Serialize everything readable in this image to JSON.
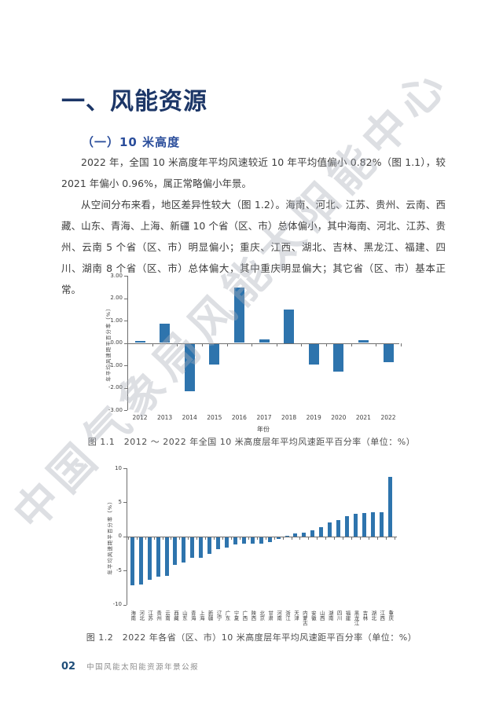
{
  "page": {
    "heading": "一、风能资源",
    "subheading": "（一）10 米高度",
    "paragraphs": [
      "2022 年，全国 10 米高度年平均风速较近 10 年平均值偏小 0.82%（图 1.1），较 2021 年偏小 0.96%，属正常略偏小年景。",
      "从空间分布来看，地区差异性较大（图 1.2）。海南、河北、江苏、贵州、云南、西藏、山东、青海、上海、新疆 10 个省（区、市）总体偏小，其中海南、河北、江苏、贵州、云南 5 个省（区、市）明显偏小；重庆、江西、湖北、吉林、黑龙江、福建、四川、湖南 8 个省（区、市）总体偏大，其中重庆明显偏大；其它省（区、市）基本正常。"
    ],
    "watermark": "中国气象局风能太阳能中心",
    "footer": {
      "page_number": "02",
      "text": "中国风能太阳能资源年景公报"
    }
  },
  "colors": {
    "bar": "#2E74AD",
    "heading": "#1C3667",
    "subheading": "#2A4D9B",
    "axis": "#6E6E6E",
    "tick_text": "#404040",
    "caption_text": "#4D4D4D"
  },
  "chart_data": [
    {
      "type": "bar",
      "title": "图 1.1　2012 ～ 2022 年全国 10 米高度层年平均风速距平百分率（单位：%）",
      "categories": [
        "2012",
        "2013",
        "2014",
        "2015",
        "2016",
        "2017",
        "2018",
        "2019",
        "2020",
        "2021",
        "2022"
      ],
      "values": [
        0.08,
        0.86,
        -2.12,
        -0.92,
        2.47,
        0.17,
        1.5,
        -0.93,
        -1.23,
        0.14,
        -0.82
      ],
      "xlabel": "年份",
      "ylabel": "年平均风速距平百分率（%）",
      "ylim": [
        -3,
        3
      ],
      "ytick_step": 1,
      "ytick_decimals": 2,
      "grid": false,
      "legend": "none"
    },
    {
      "type": "bar",
      "title": "图 1.2　2022 年各省（区、市）10 米高度层年平均风速距平百分率（单位：%）",
      "categories": [
        "海南",
        "河北",
        "江苏",
        "贵州",
        "云南",
        "西藏",
        "山东",
        "青海",
        "上海",
        "新疆",
        "辽宁",
        "广东",
        "宁夏",
        "广西",
        "陕西",
        "北京",
        "甘肃",
        "河南",
        "浙江",
        "天津",
        "内蒙古",
        "安徽",
        "山西",
        "湖南",
        "四川",
        "福建",
        "黑龙江",
        "吉林",
        "湖北",
        "江西",
        "重庆"
      ],
      "values": [
        -7.0,
        -6.9,
        -6.2,
        -5.8,
        -5.7,
        -4.0,
        -3.7,
        -3.0,
        -3.0,
        -2.5,
        -1.8,
        -1.5,
        -1.1,
        -0.9,
        -0.9,
        -0.9,
        -0.7,
        -0.25,
        0.1,
        0.4,
        0.6,
        0.9,
        1.4,
        2.1,
        2.4,
        3.0,
        3.3,
        3.4,
        3.5,
        3.5,
        8.7
      ],
      "xlabel": "",
      "ylabel": "年平均风速距平百分率（%）",
      "ylim": [
        -10,
        10
      ],
      "ytick_step": 5,
      "ytick_decimals": 0,
      "grid": false,
      "legend": "none"
    }
  ]
}
